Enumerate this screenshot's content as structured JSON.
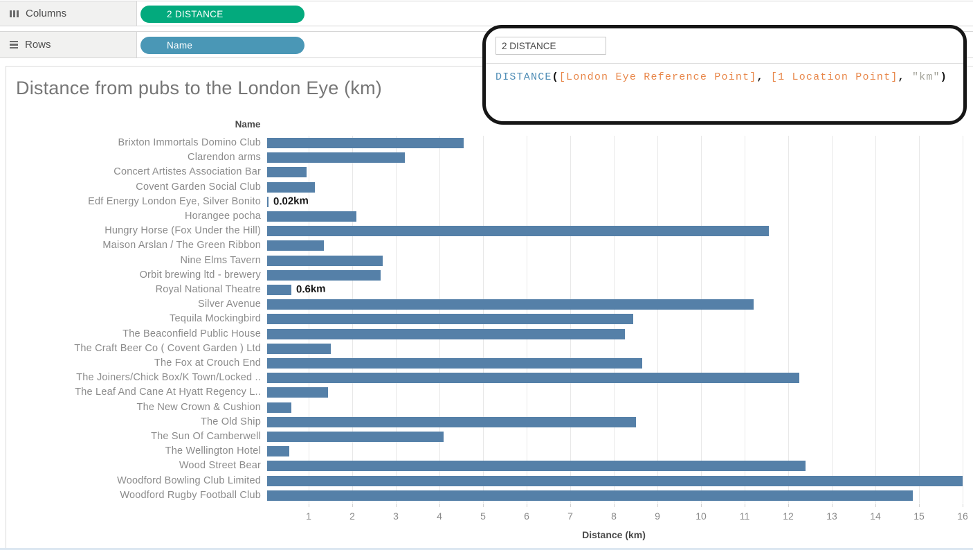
{
  "shelves": {
    "columns": {
      "label": "Columns",
      "pill": "2 DISTANCE",
      "pill_color": "#03aa7d"
    },
    "rows": {
      "label": "Rows",
      "pill": "Name",
      "pill_color": "#4a97b6"
    }
  },
  "calc_editor": {
    "name_value": "2 DISTANCE",
    "formula_tokens": [
      {
        "t": "DISTANCE",
        "c": "fn"
      },
      {
        "t": "(",
        "c": "op"
      },
      {
        "t": "[London Eye Reference Point]",
        "c": "field"
      },
      {
        "t": ",",
        "c": "op"
      },
      {
        "t": " ",
        "c": "plain"
      },
      {
        "t": "[1 Location Point]",
        "c": "field"
      },
      {
        "t": ",",
        "c": "op"
      },
      {
        "t": " ",
        "c": "plain"
      },
      {
        "t": "\"km\"",
        "c": "str"
      },
      {
        "t": ")",
        "c": "op"
      }
    ]
  },
  "chart_data": {
    "type": "bar",
    "orientation": "horizontal",
    "title": "Distance from pubs to the London Eye (km)",
    "rows_header": "Name",
    "xlabel": "Distance (km)",
    "xlim": [
      0,
      16
    ],
    "x_ticks": [
      1,
      2,
      3,
      4,
      5,
      6,
      7,
      8,
      9,
      10,
      11,
      12,
      13,
      14,
      15,
      16
    ],
    "grid": true,
    "bar_color": "#5580a8",
    "categories": [
      "Brixton Immortals Domino Club",
      "Clarendon arms",
      "Concert Artistes Association Bar",
      "Covent Garden Social Club",
      "Edf Energy London Eye, Silver Bonito",
      "Horangee pocha",
      "Hungry Horse (Fox Under the Hill)",
      "Maison Arslan / The Green Ribbon",
      "Nine Elms Tavern",
      "Orbit brewing ltd - brewery",
      "Royal National Theatre",
      "Silver Avenue",
      "Tequila Mockingbird",
      "The Beaconfield Public House",
      "The Craft Beer Co ( Covent Garden ) Ltd",
      "The Fox at Crouch End",
      "The Joiners/Chick Box/K Town/Locked ..",
      "The Leaf And Cane At Hyatt Regency L..",
      "The New Crown & Cushion",
      "The Old Ship",
      "The Sun Of Camberwell",
      "The Wellington Hotel",
      "Wood Street Bear",
      "Woodford Bowling Club Limited",
      "Woodford Rugby Football Club"
    ],
    "values": [
      4.55,
      3.2,
      0.95,
      1.15,
      0.02,
      2.1,
      11.55,
      1.35,
      2.7,
      2.65,
      0.6,
      11.2,
      8.45,
      8.25,
      1.5,
      8.65,
      12.25,
      1.45,
      0.6,
      8.5,
      4.1,
      0.55,
      12.4,
      16.0,
      14.85
    ],
    "annotations": [
      {
        "category_index": 4,
        "text": "0.02km"
      },
      {
        "category_index": 10,
        "text": "0.6km"
      }
    ]
  }
}
